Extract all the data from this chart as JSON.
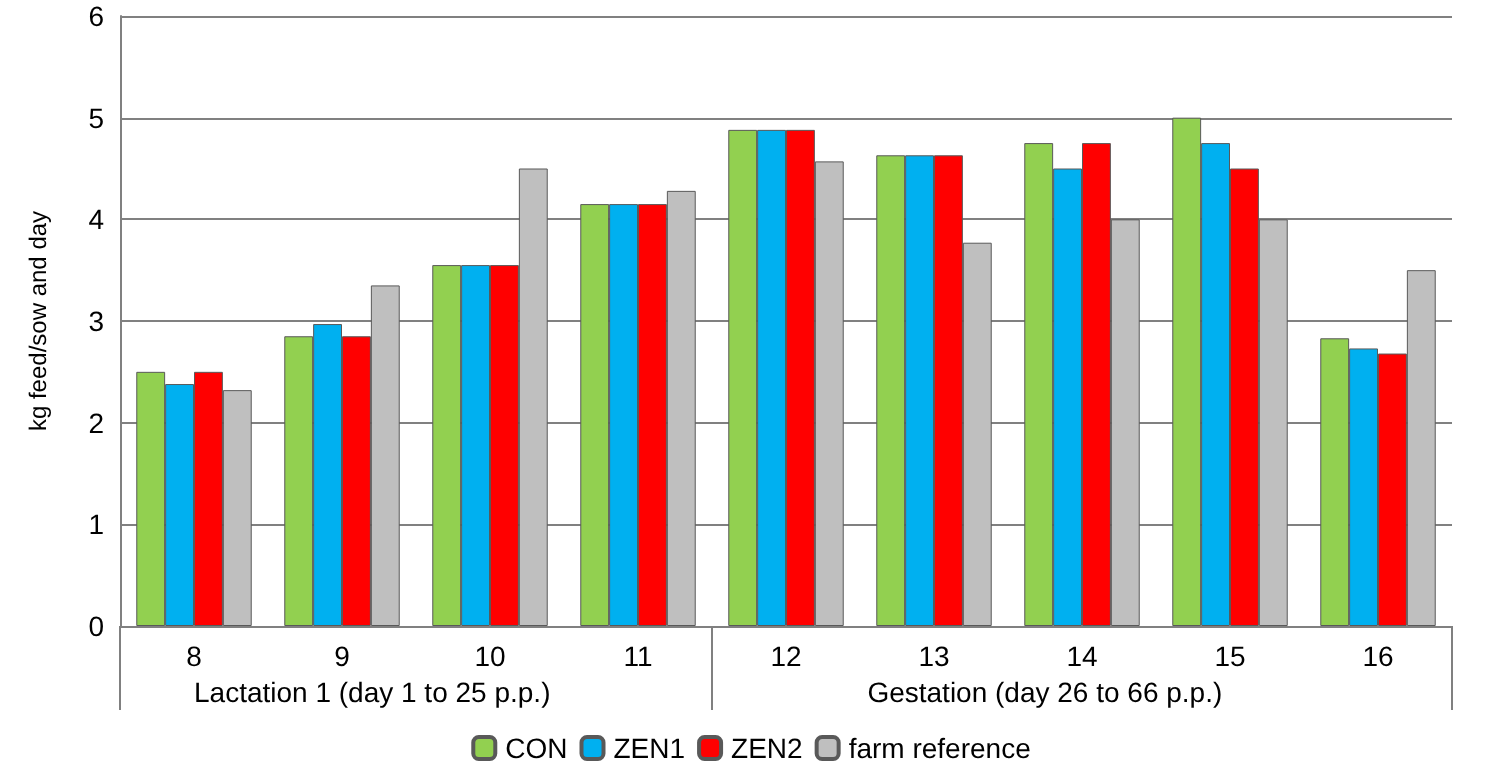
{
  "chart_data": {
    "type": "bar",
    "ylabel": "kg feed/sow and day",
    "categories": [
      "8",
      "9",
      "10",
      "11",
      "12",
      "13",
      "14",
      "15",
      "16"
    ],
    "series": [
      {
        "name": "CON",
        "color": "#92d050",
        "values": [
          2.5,
          2.85,
          3.55,
          4.15,
          4.88,
          4.63,
          4.75,
          5.0,
          2.83
        ]
      },
      {
        "name": "ZEN1",
        "color": "#00b0f0",
        "values": [
          2.38,
          2.97,
          3.55,
          4.15,
          4.88,
          4.63,
          4.5,
          4.75,
          2.73
        ]
      },
      {
        "name": "ZEN2",
        "color": "#ff0000",
        "values": [
          2.5,
          2.85,
          3.55,
          4.15,
          4.88,
          4.63,
          4.75,
          4.5,
          2.68
        ]
      },
      {
        "name": "farm reference",
        "color": "#bfbfbf",
        "values": [
          2.32,
          3.35,
          4.5,
          4.28,
          4.57,
          3.77,
          4.0,
          4.0,
          3.5
        ]
      }
    ],
    "annotations": [
      "Lactation 1 (day 1 to 25 p.p.)",
      "Gestation (day 26 to 66 p.p.)"
    ],
    "ylim": [
      0,
      6
    ],
    "yticks": [
      0,
      1,
      2,
      3,
      4,
      5,
      6
    ],
    "grid": "y",
    "legend": "bottom"
  }
}
